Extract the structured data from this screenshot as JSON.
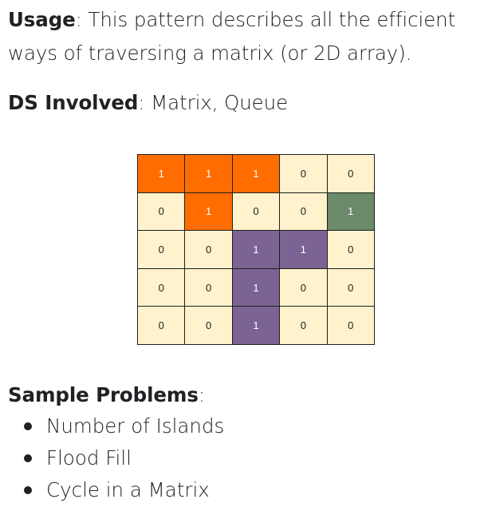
{
  "usage": {
    "label": "Usage",
    "sep": ":",
    "text": " This pattern describes all the efficient ways of traversing a matrix (or 2D array)."
  },
  "ds": {
    "label": "DS Involved",
    "sep": ":",
    "text": " Matrix, Queue"
  },
  "matrix": {
    "colors": {
      "default": "#fff2cc",
      "orange": "#ff6d01",
      "green": "#6a8a6a",
      "purple": "#7b6494",
      "text_dark": "#1f1f1f",
      "text_light": "#ffffff"
    },
    "rows": [
      [
        "1",
        "1",
        "1",
        "0",
        "0"
      ],
      [
        "0",
        "1",
        "0",
        "0",
        "1"
      ],
      [
        "0",
        "0",
        "1",
        "1",
        "0"
      ],
      [
        "0",
        "0",
        "1",
        "0",
        "0"
      ],
      [
        "0",
        "0",
        "1",
        "0",
        "0"
      ]
    ],
    "fills": [
      [
        "orange",
        "orange",
        "orange",
        "default",
        "default"
      ],
      [
        "default",
        "orange",
        "default",
        "default",
        "green"
      ],
      [
        "default",
        "default",
        "purple",
        "purple",
        "default"
      ],
      [
        "default",
        "default",
        "purple",
        "default",
        "default"
      ],
      [
        "default",
        "default",
        "purple",
        "default",
        "default"
      ]
    ]
  },
  "sample": {
    "label": "Sample Problems",
    "sep": ":",
    "items": [
      "Number of Islands",
      "Flood Fill",
      "Cycle in a Matrix"
    ]
  }
}
